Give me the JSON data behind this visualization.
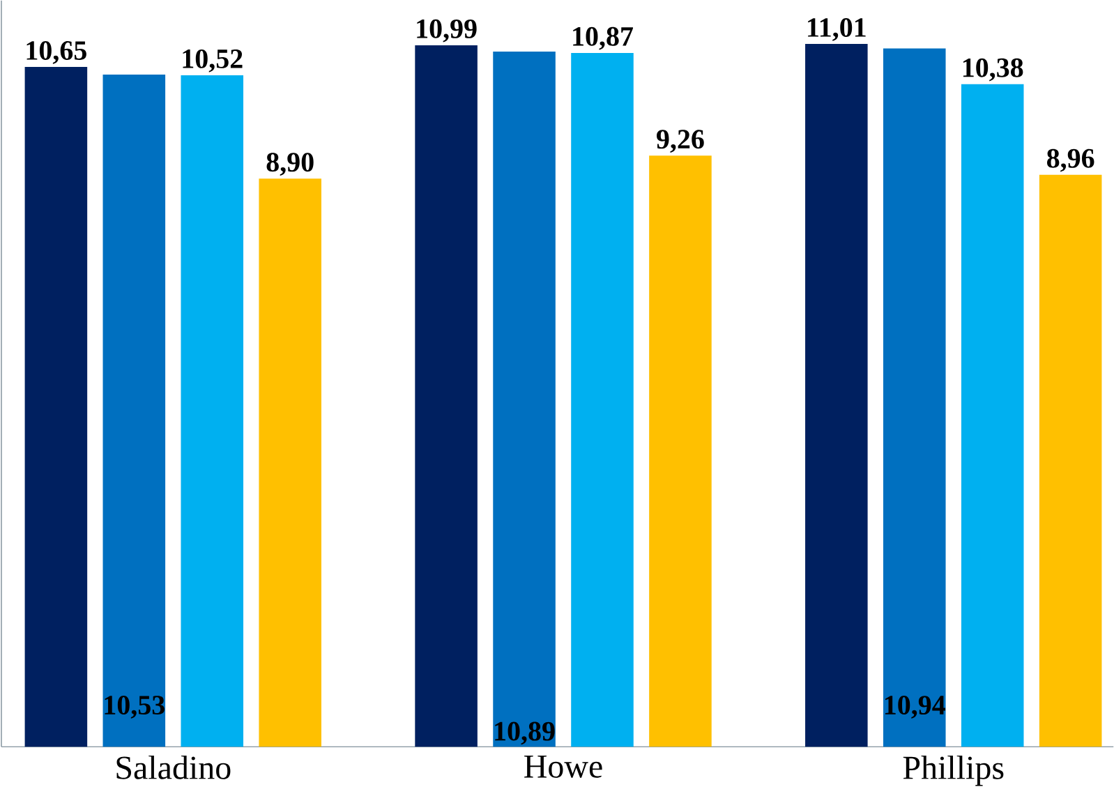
{
  "chart_data": {
    "type": "bar",
    "categories": [
      "Saladino",
      "Howe",
      "Phillips"
    ],
    "ylim": [
      0,
      11.69
    ],
    "series": [
      {
        "color": "#002060",
        "values": [
          10.65,
          10.99,
          11.01
        ],
        "value_labels": [
          "10,65",
          "10,99",
          "11,01"
        ]
      },
      {
        "color": "#0070c0",
        "values": [
          10.53,
          10.89,
          10.94
        ],
        "value_labels": [
          "10,53",
          "10,89",
          "10,94"
        ]
      },
      {
        "color": "#00b0f0",
        "values": [
          10.52,
          10.87,
          10.38
        ],
        "value_labels": [
          "10,52",
          "10,87",
          "10,38"
        ]
      },
      {
        "color": "#ffc000",
        "values": [
          8.9,
          9.26,
          8.96
        ],
        "value_labels": [
          "8,90",
          "9,26",
          "8,96"
        ]
      }
    ]
  }
}
